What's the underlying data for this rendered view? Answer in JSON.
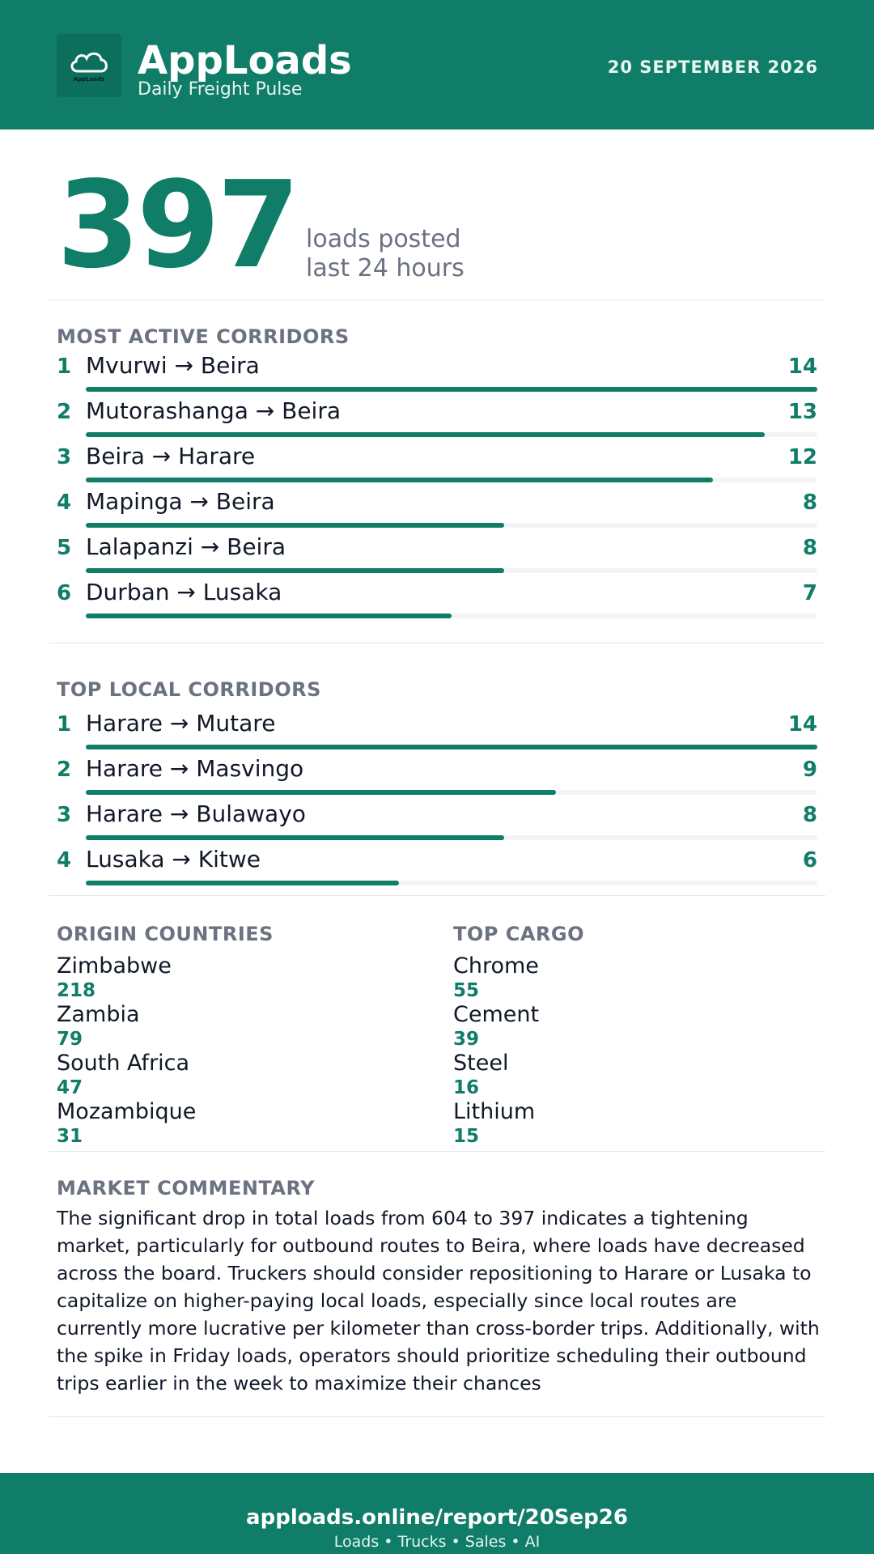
{
  "header": {
    "logo_text": "AppLoads",
    "app_name": "AppLoads",
    "tagline": "Daily Freight Pulse",
    "date": "20 SEPTEMBER 2026",
    "icon": "cloud-logo-icon"
  },
  "headline": {
    "value": "397",
    "label_line1": "loads posted",
    "label_line2": "last 24 hours"
  },
  "most_active": {
    "title": "MOST ACTIVE CORRIDORS",
    "max": 14,
    "items": [
      {
        "rank": "1",
        "name": "Mvurwi → Beira",
        "value": "14"
      },
      {
        "rank": "2",
        "name": "Mutorashanga → Beira",
        "value": "13"
      },
      {
        "rank": "3",
        "name": "Beira → Harare",
        "value": "12"
      },
      {
        "rank": "4",
        "name": "Mapinga → Beira",
        "value": "8"
      },
      {
        "rank": "5",
        "name": "Lalapanzi → Beira",
        "value": "8"
      },
      {
        "rank": "6",
        "name": "Durban → Lusaka",
        "value": "7"
      }
    ]
  },
  "top_local": {
    "title": "TOP LOCAL CORRIDORS",
    "max": 14,
    "items": [
      {
        "rank": "1",
        "name": "Harare → Mutare",
        "value": "14"
      },
      {
        "rank": "2",
        "name": "Harare → Masvingo",
        "value": "9"
      },
      {
        "rank": "3",
        "name": "Harare → Bulawayo",
        "value": "8"
      },
      {
        "rank": "4",
        "name": "Lusaka → Kitwe",
        "value": "6"
      }
    ]
  },
  "origin_countries": {
    "title": "ORIGIN COUNTRIES",
    "items": [
      {
        "name": "Zimbabwe",
        "value": "218"
      },
      {
        "name": "Zambia",
        "value": "79"
      },
      {
        "name": "South Africa",
        "value": "47"
      },
      {
        "name": "Mozambique",
        "value": "31"
      }
    ]
  },
  "top_cargo": {
    "title": "TOP CARGO",
    "items": [
      {
        "name": "Chrome",
        "value": "55"
      },
      {
        "name": "Cement",
        "value": "39"
      },
      {
        "name": "Steel",
        "value": "16"
      },
      {
        "name": "Lithium",
        "value": "15"
      }
    ]
  },
  "commentary": {
    "title": "MARKET COMMENTARY",
    "text": "The significant drop in total loads from 604 to 397 indicates a tightening market, particularly for outbound routes to Beira, where loads have decreased across the board. Truckers should consider repositioning to Harare or Lusaka to capitalize on higher-paying local loads, especially since local routes are currently more lucrative per kilometer than cross-border trips. Additionally, with the spike in Friday loads, operators should prioritize scheduling their outbound trips earlier in the week to maximize their chances"
  },
  "footer": {
    "url": "apploads.online/report/20Sep26",
    "tagline": "Loads • Trucks • Sales • AI"
  },
  "colors": {
    "brand": "#0f7d68",
    "muted": "#6b7280",
    "track": "#f3f4f6"
  }
}
